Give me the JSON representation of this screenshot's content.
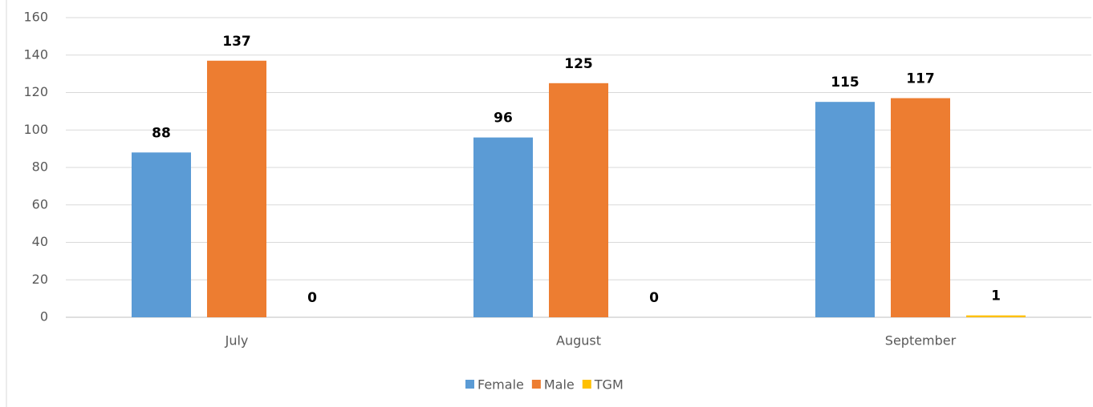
{
  "chart_data": {
    "type": "bar",
    "categories": [
      "July",
      "August",
      "September"
    ],
    "series": [
      {
        "name": "Female",
        "color": "#5b9bd5",
        "values": [
          88,
          96,
          115
        ]
      },
      {
        "name": "Male",
        "color": "#ed7d31",
        "values": [
          137,
          125,
          117
        ]
      },
      {
        "name": "TGM",
        "color": "#ffc000",
        "values": [
          0,
          0,
          1
        ]
      }
    ],
    "ylim": [
      0,
      160
    ],
    "yticks": [
      0,
      20,
      40,
      60,
      80,
      100,
      120,
      140,
      160
    ],
    "grid": true,
    "legend": "bottom"
  }
}
